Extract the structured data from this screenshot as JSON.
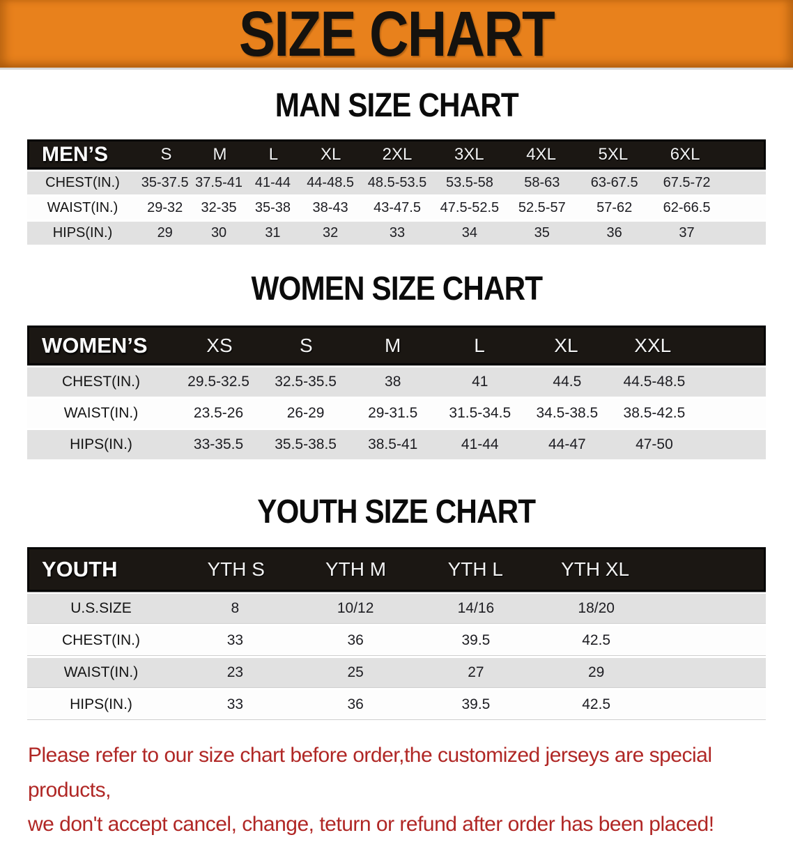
{
  "banner": {
    "title": "SIZE CHART"
  },
  "colors": {
    "banner_orange": "#e8811c",
    "header_black": "#1b1713",
    "row_gray": "#e1e1e1",
    "disclaimer_red": "#b02725"
  },
  "sections": [
    {
      "title": "MAN SIZE CHART",
      "header_label": "MEN’S",
      "columns": [
        "S",
        "M",
        "L",
        "XL",
        "2XL",
        "3XL",
        "4XL",
        "5XL",
        "6XL"
      ],
      "rows": [
        {
          "label": "CHEST(IN.)",
          "values": [
            "35-37.5",
            "37.5-41",
            "41-44",
            "44-48.5",
            "48.5-53.5",
            "53.5-58",
            "58-63",
            "63-67.5",
            "67.5-72"
          ]
        },
        {
          "label": "WAIST(IN.)",
          "values": [
            "29-32",
            "32-35",
            "35-38",
            "38-43",
            "43-47.5",
            "47.5-52.5",
            "52.5-57",
            "57-62",
            "62-66.5"
          ]
        },
        {
          "label": "HIPS(IN.)",
          "values": [
            "29",
            "30",
            "31",
            "32",
            "33",
            "34",
            "35",
            "36",
            "37"
          ]
        }
      ]
    },
    {
      "title": "WOMEN SIZE CHART",
      "header_label": "WOMEN’S",
      "columns": [
        "XS",
        "S",
        "M",
        "L",
        "XL",
        "XXL"
      ],
      "rows": [
        {
          "label": "CHEST(IN.)",
          "values": [
            "29.5-32.5",
            "32.5-35.5",
            "38",
            "41",
            "44.5",
            "44.5-48.5"
          ]
        },
        {
          "label": "WAIST(IN.)",
          "values": [
            "23.5-26",
            "26-29",
            "29-31.5",
            "31.5-34.5",
            "34.5-38.5",
            "38.5-42.5"
          ]
        },
        {
          "label": "HIPS(IN.)",
          "values": [
            "33-35.5",
            "35.5-38.5",
            "38.5-41",
            "41-44",
            "44-47",
            "47-50"
          ]
        }
      ]
    },
    {
      "title": "YOUTH SIZE CHART",
      "header_label": "YOUTH",
      "columns": [
        "YTH S",
        "YTH M",
        "YTH L",
        "YTH XL"
      ],
      "rows": [
        {
          "label": "U.S.SIZE",
          "values": [
            "8",
            "10/12",
            "14/16",
            "18/20"
          ]
        },
        {
          "label": "CHEST(IN.)",
          "values": [
            "33",
            "36",
            "39.5",
            "42.5"
          ]
        },
        {
          "label": "WAIST(IN.)",
          "values": [
            "23",
            "25",
            "27",
            "29"
          ]
        },
        {
          "label": "HIPS(IN.)",
          "values": [
            "33",
            "36",
            "39.5",
            "42.5"
          ]
        }
      ]
    }
  ],
  "disclaimer": {
    "line1": "Please refer to our size chart before order,the customized jerseys are special products,",
    "line2": "we don't accept cancel, change, teturn or refund after order has been placed!"
  }
}
